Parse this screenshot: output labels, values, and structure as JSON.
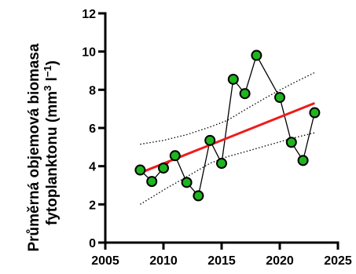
{
  "chart_data": {
    "type": "scatter",
    "ylabel_line1": "Průměrná objemová biomasa",
    "ylabel_line2_prefix": "fytoplanktonu (mm",
    "ylabel_line2_sup1": "3",
    "ylabel_line2_mid": " l",
    "ylabel_line2_sup2": "−1",
    "ylabel_line2_suffix": ")",
    "xlim": [
      2005,
      2025
    ],
    "ylim": [
      0,
      12
    ],
    "x_ticks": [
      2005,
      2010,
      2015,
      2020,
      2025
    ],
    "y_ticks": [
      0,
      2,
      4,
      6,
      8,
      10,
      12
    ],
    "grid": false,
    "series": [
      {
        "x": [
          2008,
          2009,
          2010,
          2011,
          2012,
          2013,
          2014,
          2015,
          2016,
          2017,
          2018,
          2020,
          2021,
          2022,
          2023
        ],
        "y": [
          3.8,
          3.2,
          3.9,
          4.55,
          3.15,
          2.45,
          5.35,
          4.15,
          8.55,
          7.8,
          9.8,
          7.6,
          5.25,
          4.3,
          6.8
        ]
      }
    ],
    "trend_line": {
      "x": [
        2008,
        2023
      ],
      "y": [
        3.65,
        7.3
      ]
    },
    "confidence_band": {
      "x": [
        2008,
        2010,
        2012,
        2014,
        2015.5,
        2017,
        2019,
        2021,
        2023
      ],
      "upper": [
        5.15,
        5.35,
        5.65,
        6.05,
        6.4,
        6.95,
        7.65,
        8.3,
        8.9
      ],
      "lower": [
        2.0,
        2.75,
        3.45,
        4.15,
        4.5,
        4.75,
        5.1,
        5.45,
        5.75
      ]
    },
    "colors": {
      "marker_fill": "#1eb51e",
      "marker_stroke": "#000000",
      "connect_line": "#000000",
      "trend_line": "#ee1c1c",
      "band_line": "#000000"
    }
  }
}
